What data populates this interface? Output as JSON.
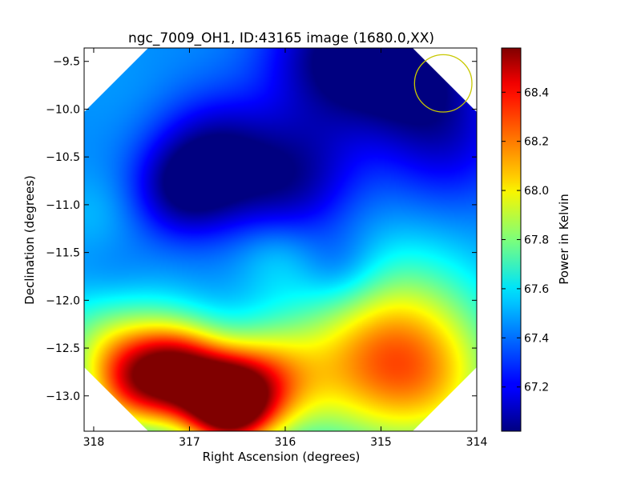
{
  "chart_data": {
    "type": "heatmap",
    "title": "ngc_7009_OH1, ID:43165 image (1680.0,XX)",
    "xlabel": "Right Ascension (degrees)",
    "ylabel": "Declination (degrees)",
    "xlim": [
      318.1,
      314.0
    ],
    "ylim": [
      -13.37,
      -9.36
    ],
    "x_ticks": [
      {
        "value": 318,
        "label": "318"
      },
      {
        "value": 317,
        "label": "317"
      },
      {
        "value": 316,
        "label": "316"
      },
      {
        "value": 315,
        "label": "315"
      },
      {
        "value": 314,
        "label": "314"
      }
    ],
    "y_ticks": [
      {
        "value": -9.5,
        "label": "−9.5"
      },
      {
        "value": -10.0,
        "label": "−10.0"
      },
      {
        "value": -10.5,
        "label": "−10.5"
      },
      {
        "value": -11.0,
        "label": "−11.0"
      },
      {
        "value": -11.5,
        "label": "−11.5"
      },
      {
        "value": -12.0,
        "label": "−12.0"
      },
      {
        "value": -12.5,
        "label": "−12.5"
      },
      {
        "value": -13.0,
        "label": "−13.0"
      }
    ],
    "colorbar": {
      "label": "Power in Kelvin",
      "range": [
        67.02,
        68.58
      ],
      "colormap": "jet",
      "ticks": [
        {
          "value": 67.2,
          "label": "67.2"
        },
        {
          "value": 67.4,
          "label": "67.4"
        },
        {
          "value": 67.6,
          "label": "67.6"
        },
        {
          "value": 67.8,
          "label": "67.8"
        },
        {
          "value": 68.0,
          "label": "68.0"
        },
        {
          "value": 68.2,
          "label": "68.2"
        },
        {
          "value": 68.4,
          "label": "68.4"
        }
      ]
    },
    "background_level": 67.43,
    "field_features": [
      {
        "ra": 316.6,
        "dec": -13.1,
        "level": 68.58,
        "sigma": 0.32
      },
      {
        "ra": 317.1,
        "dec": -12.75,
        "level": 68.35,
        "sigma": 0.35
      },
      {
        "ra": 316.2,
        "dec": -12.85,
        "level": 68.0,
        "sigma": 0.4
      },
      {
        "ra": 317.6,
        "dec": -12.9,
        "level": 68.0,
        "sigma": 0.35
      },
      {
        "ra": 315.2,
        "dec": -12.7,
        "level": 67.92,
        "sigma": 0.6
      },
      {
        "ra": 314.4,
        "dec": -12.9,
        "level": 67.8,
        "sigma": 0.55
      },
      {
        "ra": 314.7,
        "dec": -12.2,
        "level": 67.7,
        "sigma": 0.6
      },
      {
        "ra": 317.8,
        "dec": -12.4,
        "level": 67.85,
        "sigma": 0.45
      },
      {
        "ra": 316.7,
        "dec": -10.55,
        "level": 67.02,
        "sigma": 0.45
      },
      {
        "ra": 317.1,
        "dec": -10.85,
        "level": 67.15,
        "sigma": 0.35
      },
      {
        "ra": 315.5,
        "dec": -9.45,
        "level": 67.05,
        "sigma": 0.5
      },
      {
        "ra": 314.7,
        "dec": -9.6,
        "level": 67.05,
        "sigma": 0.5
      },
      {
        "ra": 314.3,
        "dec": -10.35,
        "level": 67.2,
        "sigma": 0.5
      },
      {
        "ra": 315.8,
        "dec": -10.6,
        "level": 67.2,
        "sigma": 0.45
      },
      {
        "ra": 316.0,
        "dec": -11.0,
        "level": 67.3,
        "sigma": 0.4
      },
      {
        "ra": 315.4,
        "dec": -11.7,
        "level": 67.28,
        "sigma": 0.3
      },
      {
        "ra": 317.8,
        "dec": -11.9,
        "level": 67.3,
        "sigma": 0.35
      },
      {
        "ra": 316.1,
        "dec": -11.5,
        "level": 67.55,
        "sigma": 0.3
      },
      {
        "ra": 318.0,
        "dec": -11.1,
        "level": 67.5,
        "sigma": 0.3
      },
      {
        "ra": 317.7,
        "dec": -9.8,
        "level": 67.45,
        "sigma": 0.4
      }
    ],
    "beam_circle": {
      "ra": 314.35,
      "dec": -9.73,
      "radius_deg": 0.3,
      "color": "#c8c800"
    },
    "grid": false
  }
}
